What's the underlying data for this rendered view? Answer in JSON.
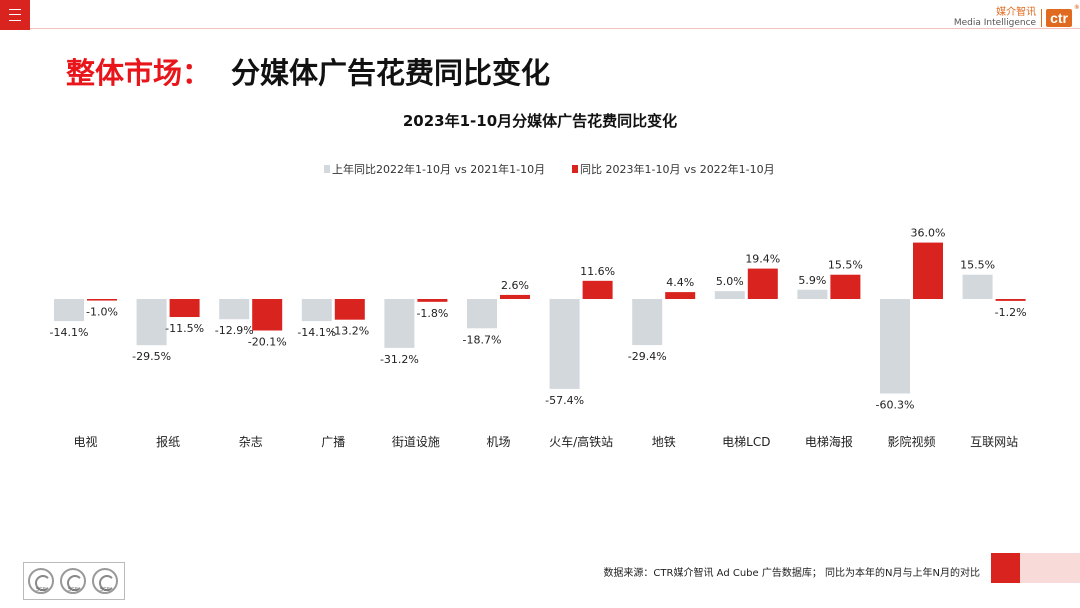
{
  "header": {
    "logo_cn": "媒介智讯",
    "logo_en": "Media Intelligence",
    "logo_mark": "ctr"
  },
  "page_title": {
    "part1": "整体市场：",
    "part2": "分媒体广告花费同比变化"
  },
  "footer": {
    "source": "数据来源：CTR媒介智讯 Ad Cube 广告数据库； 同比为本年的N月与上年N月的对比",
    "badge_label": "SGS"
  },
  "colors": {
    "accent_red": "#d9231f",
    "series_prev": "#d2d8dc",
    "series_curr": "#d9231f"
  },
  "icons": [
    "menu-icon",
    "sgs-certification-badge"
  ],
  "chart_data": {
    "type": "bar",
    "title": "2023年1-10月分媒体广告花费同比变化",
    "legend_position": "top",
    "grid": false,
    "ylim": [
      -62,
      38
    ],
    "categories": [
      "电视",
      "报纸",
      "杂志",
      "广播",
      "街道设施",
      "机场",
      "火车/高铁站",
      "地铁",
      "电梯LCD",
      "电梯海报",
      "影院视频",
      "互联网站"
    ],
    "series": [
      {
        "name": "上年同比2022年1-10月  vs  2021年1-10月",
        "color": "#d2d8dc",
        "values": [
          -14.1,
          -29.5,
          -12.9,
          -14.1,
          -31.2,
          -18.7,
          -57.4,
          -29.4,
          5.0,
          5.9,
          -60.3,
          15.5
        ],
        "labels": [
          "-14.1%",
          "-29.5%",
          "-12.9%",
          "-14.1%",
          "-31.2%",
          "-18.7%",
          "-57.4%",
          "-29.4%",
          "5.0%",
          "5.9%",
          "-60.3%",
          "15.5%"
        ]
      },
      {
        "name": "同比 2023年1-10月  vs  2022年1-10月",
        "color": "#d9231f",
        "values": [
          -1.0,
          -11.5,
          -20.1,
          -13.2,
          -1.8,
          2.6,
          11.6,
          4.4,
          19.4,
          15.5,
          36.0,
          -1.2
        ],
        "labels": [
          "-1.0%",
          "-11.5%",
          "-20.1%",
          "-13.2%",
          "-1.8%",
          "2.6%",
          "11.6%",
          "4.4%",
          "19.4%",
          "15.5%",
          "36.0%",
          "-1.2%"
        ]
      }
    ]
  }
}
